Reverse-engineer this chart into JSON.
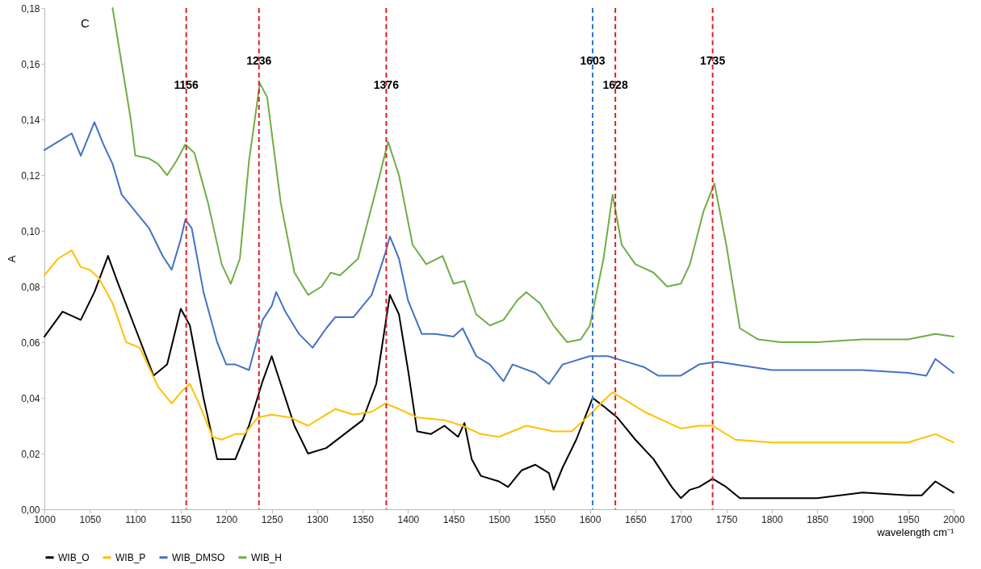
{
  "chart_data": {
    "type": "line",
    "xlabel": "wavelength cm⁻¹",
    "ylabel": "A",
    "annotations": [
      "C"
    ],
    "xlim": [
      1000,
      2000
    ],
    "xticks": [
      1000,
      1050,
      1100,
      1150,
      1200,
      1250,
      1300,
      1350,
      1400,
      1450,
      1500,
      1550,
      1600,
      1650,
      1700,
      1750,
      1800,
      1850,
      1900,
      1950,
      2000
    ],
    "ylim": [
      0,
      0.18
    ],
    "yticks": [
      {
        "value": 0,
        "label": "0,00"
      },
      {
        "value": 0.02,
        "label": "0,02"
      },
      {
        "value": 0.04,
        "label": "0,04"
      },
      {
        "value": 0.06,
        "label": "0,06"
      },
      {
        "value": 0.08,
        "label": "0,08"
      },
      {
        "value": 0.1,
        "label": "0,10"
      },
      {
        "value": 0.12,
        "label": "0,12"
      },
      {
        "value": 0.14,
        "label": "0,14"
      },
      {
        "value": 0.16,
        "label": "0,16"
      },
      {
        "value": 0.18,
        "label": "0,18"
      }
    ],
    "grid": false,
    "legend": "bottom",
    "marker": "none",
    "line_style": "solid",
    "series": [
      {
        "name": "WIB_O",
        "color": "#000000",
        "x": [
          1000,
          1020,
          1040,
          1055,
          1070,
          1080,
          1100,
          1120,
          1135,
          1150,
          1160,
          1175,
          1190,
          1210,
          1225,
          1240,
          1250,
          1260,
          1275,
          1290,
          1310,
          1330,
          1350,
          1365,
          1380,
          1390,
          1400,
          1410,
          1425,
          1440,
          1455,
          1462,
          1470,
          1480,
          1500,
          1510,
          1525,
          1540,
          1555,
          1560,
          1570,
          1585,
          1603,
          1615,
          1630,
          1650,
          1670,
          1690,
          1700,
          1710,
          1720,
          1735,
          1750,
          1765,
          1800,
          1850,
          1900,
          1950,
          1965,
          1980,
          2000
        ],
        "values": [
          0.062,
          0.071,
          0.068,
          0.078,
          0.091,
          0.082,
          0.065,
          0.048,
          0.052,
          0.072,
          0.066,
          0.04,
          0.018,
          0.018,
          0.03,
          0.046,
          0.055,
          0.045,
          0.03,
          0.02,
          0.022,
          0.027,
          0.032,
          0.045,
          0.077,
          0.07,
          0.05,
          0.028,
          0.027,
          0.03,
          0.026,
          0.031,
          0.018,
          0.012,
          0.01,
          0.008,
          0.014,
          0.016,
          0.013,
          0.007,
          0.015,
          0.025,
          0.04,
          0.037,
          0.033,
          0.025,
          0.018,
          0.008,
          0.004,
          0.007,
          0.008,
          0.011,
          0.008,
          0.004,
          0.004,
          0.004,
          0.006,
          0.005,
          0.005,
          0.01,
          0.006
        ]
      },
      {
        "name": "WIB_P",
        "color": "#ffc000",
        "x": [
          1000,
          1015,
          1030,
          1040,
          1050,
          1060,
          1075,
          1090,
          1105,
          1125,
          1140,
          1150,
          1160,
          1170,
          1185,
          1195,
          1210,
          1220,
          1235,
          1250,
          1270,
          1290,
          1310,
          1320,
          1340,
          1360,
          1375,
          1390,
          1410,
          1440,
          1460,
          1480,
          1500,
          1530,
          1560,
          1580,
          1600,
          1615,
          1625,
          1640,
          1660,
          1680,
          1700,
          1720,
          1735,
          1760,
          1800,
          1850,
          1900,
          1950,
          1980,
          2000
        ],
        "values": [
          0.084,
          0.09,
          0.093,
          0.087,
          0.086,
          0.083,
          0.074,
          0.06,
          0.058,
          0.044,
          0.038,
          0.042,
          0.045,
          0.038,
          0.026,
          0.025,
          0.027,
          0.027,
          0.033,
          0.034,
          0.033,
          0.03,
          0.034,
          0.036,
          0.034,
          0.035,
          0.038,
          0.036,
          0.033,
          0.032,
          0.03,
          0.027,
          0.026,
          0.03,
          0.028,
          0.028,
          0.034,
          0.039,
          0.042,
          0.039,
          0.035,
          0.032,
          0.029,
          0.03,
          0.03,
          0.025,
          0.024,
          0.024,
          0.024,
          0.024,
          0.027,
          0.024
        ]
      },
      {
        "name": "WIB_DMSO",
        "color": "#4472c4",
        "x": [
          1000,
          1020,
          1030,
          1040,
          1055,
          1065,
          1075,
          1085,
          1100,
          1115,
          1130,
          1140,
          1150,
          1155,
          1162,
          1175,
          1190,
          1200,
          1210,
          1225,
          1240,
          1250,
          1255,
          1265,
          1280,
          1295,
          1310,
          1320,
          1340,
          1360,
          1375,
          1380,
          1390,
          1400,
          1415,
          1430,
          1450,
          1460,
          1475,
          1490,
          1505,
          1515,
          1540,
          1555,
          1570,
          1600,
          1620,
          1640,
          1660,
          1675,
          1700,
          1720,
          1740,
          1800,
          1850,
          1900,
          1950,
          1970,
          1980,
          2000
        ],
        "values": [
          0.129,
          0.133,
          0.135,
          0.127,
          0.139,
          0.131,
          0.124,
          0.113,
          0.107,
          0.101,
          0.091,
          0.086,
          0.097,
          0.104,
          0.101,
          0.078,
          0.06,
          0.052,
          0.052,
          0.05,
          0.068,
          0.073,
          0.078,
          0.071,
          0.063,
          0.058,
          0.065,
          0.069,
          0.069,
          0.077,
          0.092,
          0.098,
          0.09,
          0.075,
          0.063,
          0.063,
          0.062,
          0.065,
          0.055,
          0.052,
          0.046,
          0.052,
          0.049,
          0.045,
          0.052,
          0.055,
          0.055,
          0.053,
          0.051,
          0.048,
          0.048,
          0.052,
          0.053,
          0.05,
          0.05,
          0.05,
          0.049,
          0.048,
          0.054,
          0.049
        ]
      },
      {
        "name": "WIB_H",
        "color": "#70ad47",
        "x": [
          1075,
          1085,
          1095,
          1100,
          1115,
          1125,
          1135,
          1145,
          1155,
          1165,
          1180,
          1195,
          1205,
          1215,
          1225,
          1237,
          1245,
          1260,
          1275,
          1290,
          1305,
          1315,
          1325,
          1345,
          1365,
          1378,
          1390,
          1405,
          1420,
          1438,
          1450,
          1462,
          1475,
          1490,
          1505,
          1520,
          1530,
          1545,
          1560,
          1575,
          1590,
          1600,
          1615,
          1625,
          1635,
          1650,
          1670,
          1685,
          1700,
          1710,
          1725,
          1737,
          1750,
          1765,
          1785,
          1810,
          1850,
          1900,
          1950,
          1980,
          2000
        ],
        "values": [
          0.18,
          0.16,
          0.14,
          0.127,
          0.126,
          0.124,
          0.12,
          0.125,
          0.131,
          0.128,
          0.11,
          0.088,
          0.081,
          0.09,
          0.125,
          0.153,
          0.148,
          0.11,
          0.085,
          0.077,
          0.08,
          0.085,
          0.084,
          0.09,
          0.115,
          0.132,
          0.12,
          0.095,
          0.088,
          0.091,
          0.081,
          0.082,
          0.07,
          0.066,
          0.068,
          0.075,
          0.078,
          0.074,
          0.066,
          0.06,
          0.061,
          0.066,
          0.09,
          0.113,
          0.095,
          0.088,
          0.085,
          0.08,
          0.081,
          0.088,
          0.107,
          0.117,
          0.095,
          0.065,
          0.061,
          0.06,
          0.06,
          0.061,
          0.061,
          0.063,
          0.062
        ]
      }
    ],
    "ref_lines": [
      {
        "axis": "x",
        "value": 1156,
        "label": "1156",
        "color": "#e02020",
        "line_style": "dashed"
      },
      {
        "axis": "x",
        "value": 1236,
        "label": "1236",
        "color": "#e02020",
        "line_style": "dashed"
      },
      {
        "axis": "x",
        "value": 1376,
        "label": "1376",
        "color": "#e02020",
        "line_style": "dashed"
      },
      {
        "axis": "x",
        "value": 1603,
        "label": "1603",
        "color": "#2e75d6",
        "line_style": "dashed"
      },
      {
        "axis": "x",
        "value": 1628,
        "label": "1628",
        "color": "#e02020",
        "line_style": "dashed"
      },
      {
        "axis": "x",
        "value": 1735,
        "label": "1735",
        "color": "#e02020",
        "line_style": "dashed"
      }
    ]
  }
}
